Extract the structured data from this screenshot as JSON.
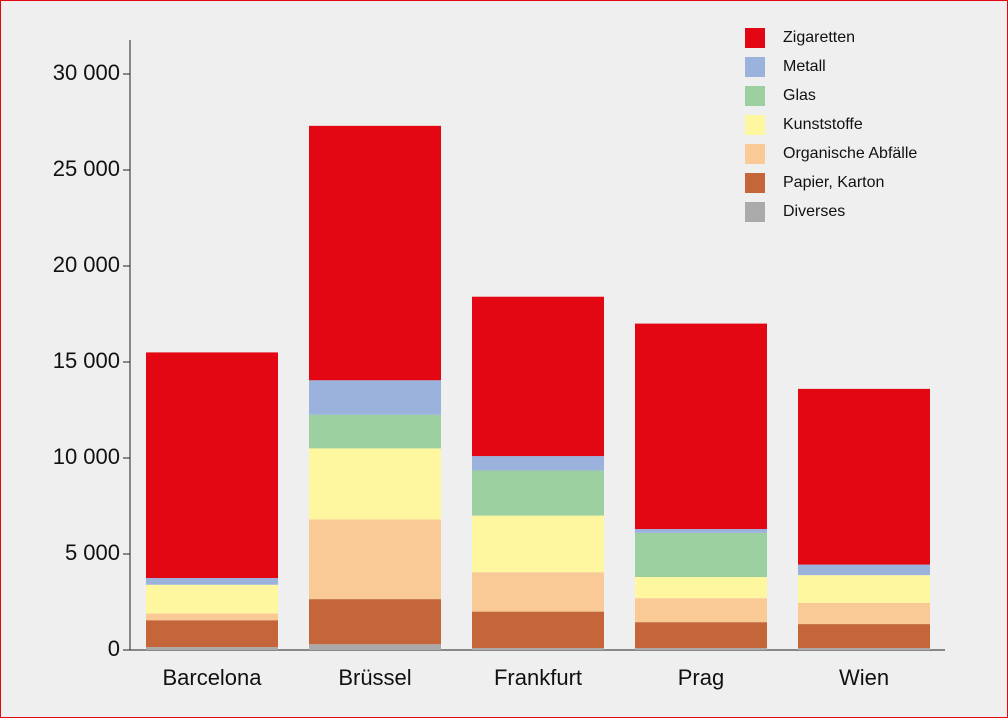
{
  "chart_data": {
    "type": "stacked_bar",
    "categories": [
      "Barcelona",
      "Brüssel",
      "Frankfurt",
      "Prag",
      "Wien"
    ],
    "series": [
      {
        "name": "Diverses",
        "color": "#aaaaaa",
        "values": [
          150,
          300,
          100,
          100,
          100
        ]
      },
      {
        "name": "Papier, Karton",
        "color": "#c4663a",
        "values": [
          1400,
          2350,
          1900,
          1350,
          1250
        ]
      },
      {
        "name": "Organische Abfälle",
        "color": "#f9c996",
        "values": [
          350,
          4150,
          2050,
          1250,
          1100
        ]
      },
      {
        "name": "Kunststoffe",
        "color": "#fff7a0",
        "values": [
          1500,
          3700,
          2950,
          1100,
          1450
        ]
      },
      {
        "name": "Glas",
        "color": "#9dd0a1",
        "values": [
          0,
          1750,
          2350,
          2300,
          0
        ]
      },
      {
        "name": "Metall",
        "color": "#9bb2dd",
        "values": [
          350,
          1800,
          750,
          200,
          550
        ]
      },
      {
        "name": "Zigaretten",
        "color": "#e30613",
        "values": [
          11750,
          13250,
          8300,
          10700,
          9150
        ]
      }
    ],
    "ylim": [
      0,
      30000
    ],
    "yticks": [
      0,
      {
        "value": 5000,
        "label": "5 000"
      },
      {
        "value": 10000,
        "label": "10 000"
      },
      {
        "value": 15000,
        "label": "15 000"
      },
      {
        "value": 20000,
        "label": "20 000"
      },
      {
        "value": 25000,
        "label": "25 000"
      },
      {
        "value": 30000,
        "label": "30 000"
      }
    ],
    "legend": "top-right"
  }
}
